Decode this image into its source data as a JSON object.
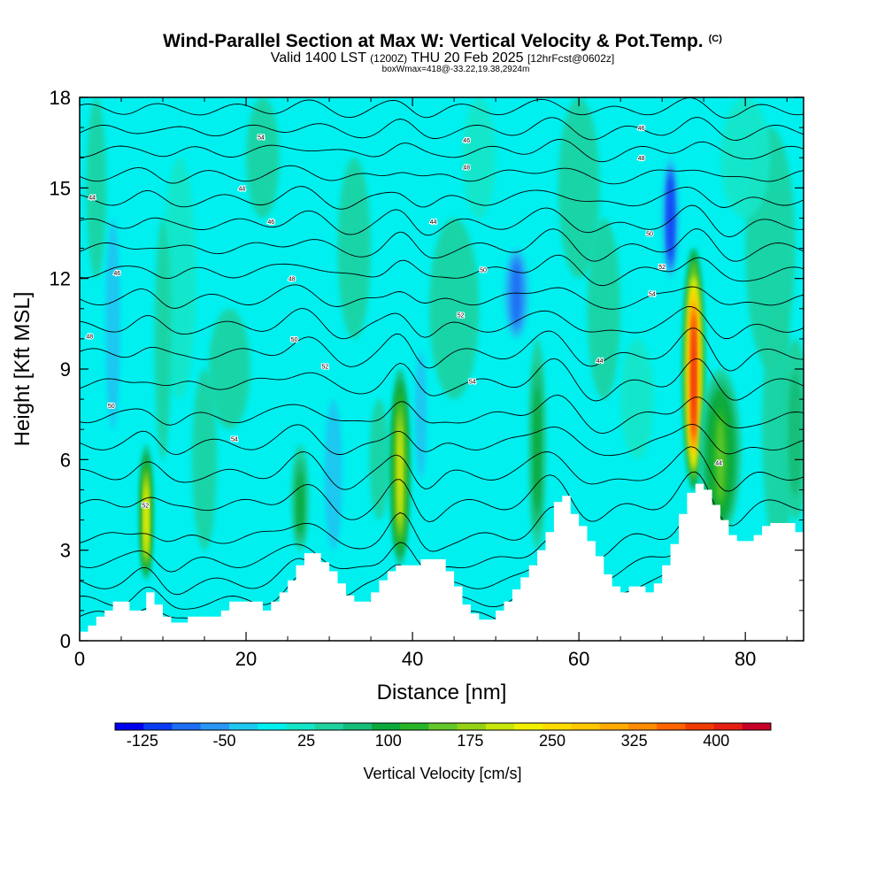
{
  "title": {
    "main": "Wind-Parallel Section at Max W: Vertical Velocity & Pot.Temp.",
    "copyright": "(C)",
    "valid_prefix": "Valid 1400 LST",
    "valid_utc": "(1200Z)",
    "valid_date": "THU 20 Feb 2025",
    "forecast": "[12hrFcst@0602z]",
    "box_info": "boxWmax=418@-33.22,19.38,2924m"
  },
  "chart_data": {
    "type": "heatmap",
    "xlabel": "Distance [nm]",
    "ylabel": "Height [Kft MSL]",
    "xlim": [
      0,
      87
    ],
    "ylim": [
      0,
      18
    ],
    "x_ticks": [
      "0",
      "20",
      "40",
      "60",
      "80"
    ],
    "y_ticks": [
      "0",
      "3",
      "6",
      "9",
      "12",
      "15",
      "18"
    ],
    "x_tick_values": [
      0,
      20,
      40,
      60,
      80
    ],
    "y_tick_values": [
      0,
      3,
      6,
      9,
      12,
      15,
      18
    ],
    "colorbar": {
      "label": "Vertical Velocity [cm/s]",
      "tick_labels": [
        "-125",
        "-50",
        "25",
        "100",
        "175",
        "250",
        "325",
        "400"
      ],
      "tick_values": [
        -125,
        -50,
        25,
        100,
        175,
        250,
        325,
        400
      ],
      "bounds": [
        -150,
        450
      ],
      "colors": [
        "#0000ee",
        "#0a3cf5",
        "#1e6ef5",
        "#2896f5",
        "#1ec8f0",
        "#00f0f0",
        "#14e6c8",
        "#1ed2a0",
        "#14be78",
        "#0aaa3c",
        "#28b428",
        "#64c828",
        "#96d214",
        "#c8e60a",
        "#f0f000",
        "#ffdc00",
        "#ffc800",
        "#ffaa00",
        "#ff8c00",
        "#ff6400",
        "#f03c00",
        "#e61e14",
        "#c80028"
      ]
    },
    "terrain_kft": [
      [
        0,
        0.3
      ],
      [
        1,
        0.5
      ],
      [
        2,
        0.8
      ],
      [
        3,
        1.0
      ],
      [
        4,
        1.3
      ],
      [
        5,
        1.3
      ],
      [
        6,
        1.0
      ],
      [
        7,
        1.0
      ],
      [
        8,
        1.6
      ],
      [
        9,
        1.2
      ],
      [
        10,
        0.8
      ],
      [
        11,
        0.6
      ],
      [
        12,
        0.6
      ],
      [
        13,
        0.8
      ],
      [
        14,
        0.8
      ],
      [
        16,
        0.8
      ],
      [
        17,
        1.0
      ],
      [
        18,
        1.3
      ],
      [
        21,
        1.3
      ],
      [
        22,
        1.0
      ],
      [
        23,
        1.3
      ],
      [
        24,
        1.6
      ],
      [
        25,
        2.0
      ],
      [
        26,
        2.5
      ],
      [
        27,
        2.9
      ],
      [
        28,
        2.9
      ],
      [
        29,
        2.6
      ],
      [
        30,
        2.3
      ],
      [
        31,
        1.9
      ],
      [
        32,
        1.5
      ],
      [
        33,
        1.3
      ],
      [
        35,
        1.6
      ],
      [
        36,
        2.0
      ],
      [
        37,
        2.3
      ],
      [
        38,
        2.5
      ],
      [
        40,
        2.5
      ],
      [
        41,
        2.7
      ],
      [
        43,
        2.7
      ],
      [
        44,
        2.3
      ],
      [
        45,
        1.8
      ],
      [
        46,
        1.2
      ],
      [
        47,
        0.9
      ],
      [
        48,
        0.7
      ],
      [
        49,
        0.7
      ],
      [
        50,
        1.0
      ],
      [
        51,
        1.3
      ],
      [
        52,
        1.7
      ],
      [
        53,
        2.1
      ],
      [
        54,
        2.5
      ],
      [
        55,
        3.0
      ],
      [
        56,
        3.6
      ],
      [
        57,
        4.6
      ],
      [
        58,
        4.8
      ],
      [
        59,
        4.2
      ],
      [
        60,
        3.8
      ],
      [
        61,
        3.3
      ],
      [
        62,
        2.8
      ],
      [
        63,
        2.2
      ],
      [
        64,
        1.8
      ],
      [
        65,
        1.6
      ],
      [
        66,
        1.8
      ],
      [
        67,
        1.8
      ],
      [
        68,
        1.6
      ],
      [
        69,
        1.9
      ],
      [
        70,
        2.5
      ],
      [
        71,
        3.2
      ],
      [
        72,
        4.2
      ],
      [
        73,
        4.9
      ],
      [
        74,
        5.2
      ],
      [
        75,
        5.0
      ],
      [
        76,
        4.5
      ],
      [
        77,
        4.0
      ],
      [
        78,
        3.5
      ],
      [
        79,
        3.3
      ],
      [
        80,
        3.3
      ],
      [
        81,
        3.5
      ],
      [
        82,
        3.8
      ],
      [
        83,
        3.9
      ],
      [
        85,
        3.9
      ],
      [
        86,
        3.6
      ],
      [
        87,
        3.6
      ]
    ],
    "updrafts": [
      {
        "x": 8,
        "w": 0.8,
        "y0": 2,
        "y1": 6.5,
        "max": 240
      },
      {
        "x": 26.5,
        "w": 1.0,
        "y0": 3,
        "y1": 6.5,
        "max": 110
      },
      {
        "x": 38.5,
        "w": 1.2,
        "y0": 2.5,
        "y1": 9,
        "max": 220
      },
      {
        "x": 55,
        "w": 1.0,
        "y0": 3,
        "y1": 10,
        "max": 110
      },
      {
        "x": 73.8,
        "w": 1.3,
        "y0": 5,
        "y1": 13,
        "max": 418
      },
      {
        "x": 77,
        "w": 2.5,
        "y0": 3.5,
        "y1": 9,
        "max": 150
      },
      {
        "x": 86,
        "w": 1.5,
        "y0": 4,
        "y1": 10,
        "max": 80
      }
    ],
    "downdrafts": [
      {
        "x": 4,
        "w": 0.8,
        "y0": 7,
        "y1": 14,
        "min": -40
      },
      {
        "x": 30.5,
        "w": 1.0,
        "y0": 3,
        "y1": 8,
        "min": -40
      },
      {
        "x": 41,
        "w": 1.0,
        "y0": 5,
        "y1": 10,
        "min": -30
      },
      {
        "x": 52.5,
        "w": 1.5,
        "y0": 10,
        "y1": 13,
        "min": -75
      },
      {
        "x": 71,
        "w": 1.0,
        "y0": 12,
        "y1": 16,
        "min": -110
      }
    ],
    "isentrope_levels_kft": [
      0.8,
      1.3,
      1.9,
      2.6,
      3.4,
      4.5,
      5.5,
      6.5,
      7.4,
      8.5,
      9.5,
      10.4,
      11.3,
      12.2,
      13.0,
      13.8,
      14.6,
      15.4,
      16.2,
      16.9,
      17.6
    ],
    "isentrope_labels": [
      "44",
      "46",
      "48",
      "50",
      "52",
      "54"
    ]
  }
}
